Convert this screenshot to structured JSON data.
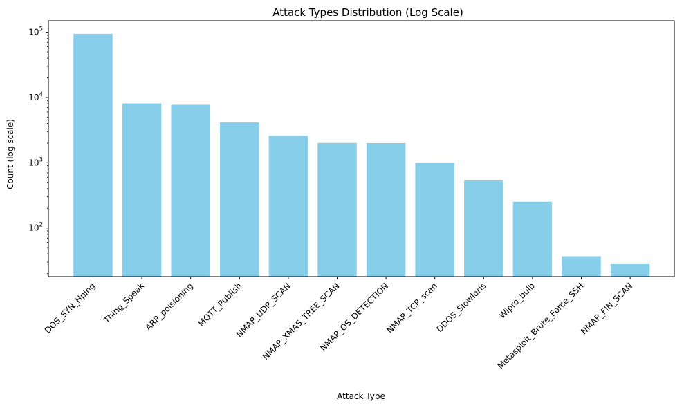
{
  "chart_data": {
    "type": "bar",
    "title": "Attack Types Distribution (Log Scale)",
    "xlabel": "Attack Type",
    "ylabel": "Count (log scale)",
    "yscale": "log",
    "ylim": [
      18,
      150000
    ],
    "major_ticks": [
      {
        "value": 100,
        "base": "10",
        "exp": "2"
      },
      {
        "value": 1000,
        "base": "10",
        "exp": "3"
      },
      {
        "value": 10000,
        "base": "10",
        "exp": "4"
      },
      {
        "value": 100000,
        "base": "10",
        "exp": "5"
      }
    ],
    "categories": [
      "DOS_SYN_Hping",
      "Thing_Speak",
      "ARP_poisioning",
      "MQTT_Publish",
      "NMAP_UDP_SCAN",
      "NMAP_XMAS_TREE_SCAN",
      "NMAP_OS_DETECTION",
      "NMAP_TCP_scan",
      "DDOS_Slowloris",
      "Wipro_bulb",
      "Metasploit_Brute_Force_SSH",
      "NMAP_FIN_SCAN"
    ],
    "values": [
      94659,
      8108,
      7750,
      4146,
      2590,
      2010,
      2000,
      1002,
      534,
      253,
      37,
      28
    ],
    "bar_color": "#87ceeb",
    "grid": false,
    "legend": "none"
  }
}
